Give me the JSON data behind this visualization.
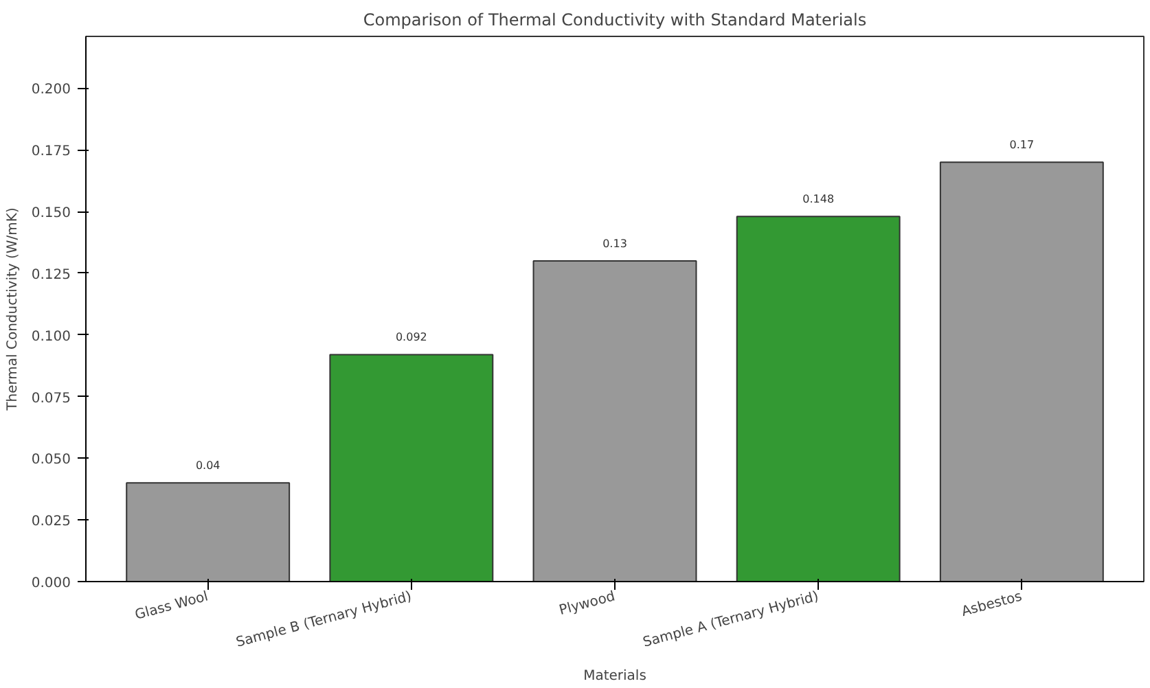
{
  "chart_data": {
    "type": "bar",
    "title": "Comparison of Thermal Conductivity with Standard Materials",
    "xlabel": "Materials",
    "ylabel": "Thermal Conductivity (W/mK)",
    "categories": [
      "Glass Wool",
      "Sample B (Ternary Hybrid)",
      "Plywood",
      "Sample A (Ternary Hybrid)",
      "Asbestos"
    ],
    "values": [
      0.04,
      0.092,
      0.13,
      0.148,
      0.17
    ],
    "colors": [
      "#999999",
      "#339933",
      "#999999",
      "#339933",
      "#999999"
    ],
    "ylim": [
      0,
      0.221
    ],
    "yticks": [
      {
        "value": 0,
        "label": "0.000"
      },
      {
        "value": 0.025,
        "label": "0.025"
      },
      {
        "value": 0.05,
        "label": "0.050"
      },
      {
        "value": 0.075,
        "label": "0.075"
      },
      {
        "value": 0.1,
        "label": "0.100"
      },
      {
        "value": 0.125,
        "label": "0.125"
      },
      {
        "value": 0.15,
        "label": "0.150"
      },
      {
        "value": 0.175,
        "label": "0.175"
      },
      {
        "value": 0.2,
        "label": "0.200"
      }
    ],
    "data_labels": true
  }
}
